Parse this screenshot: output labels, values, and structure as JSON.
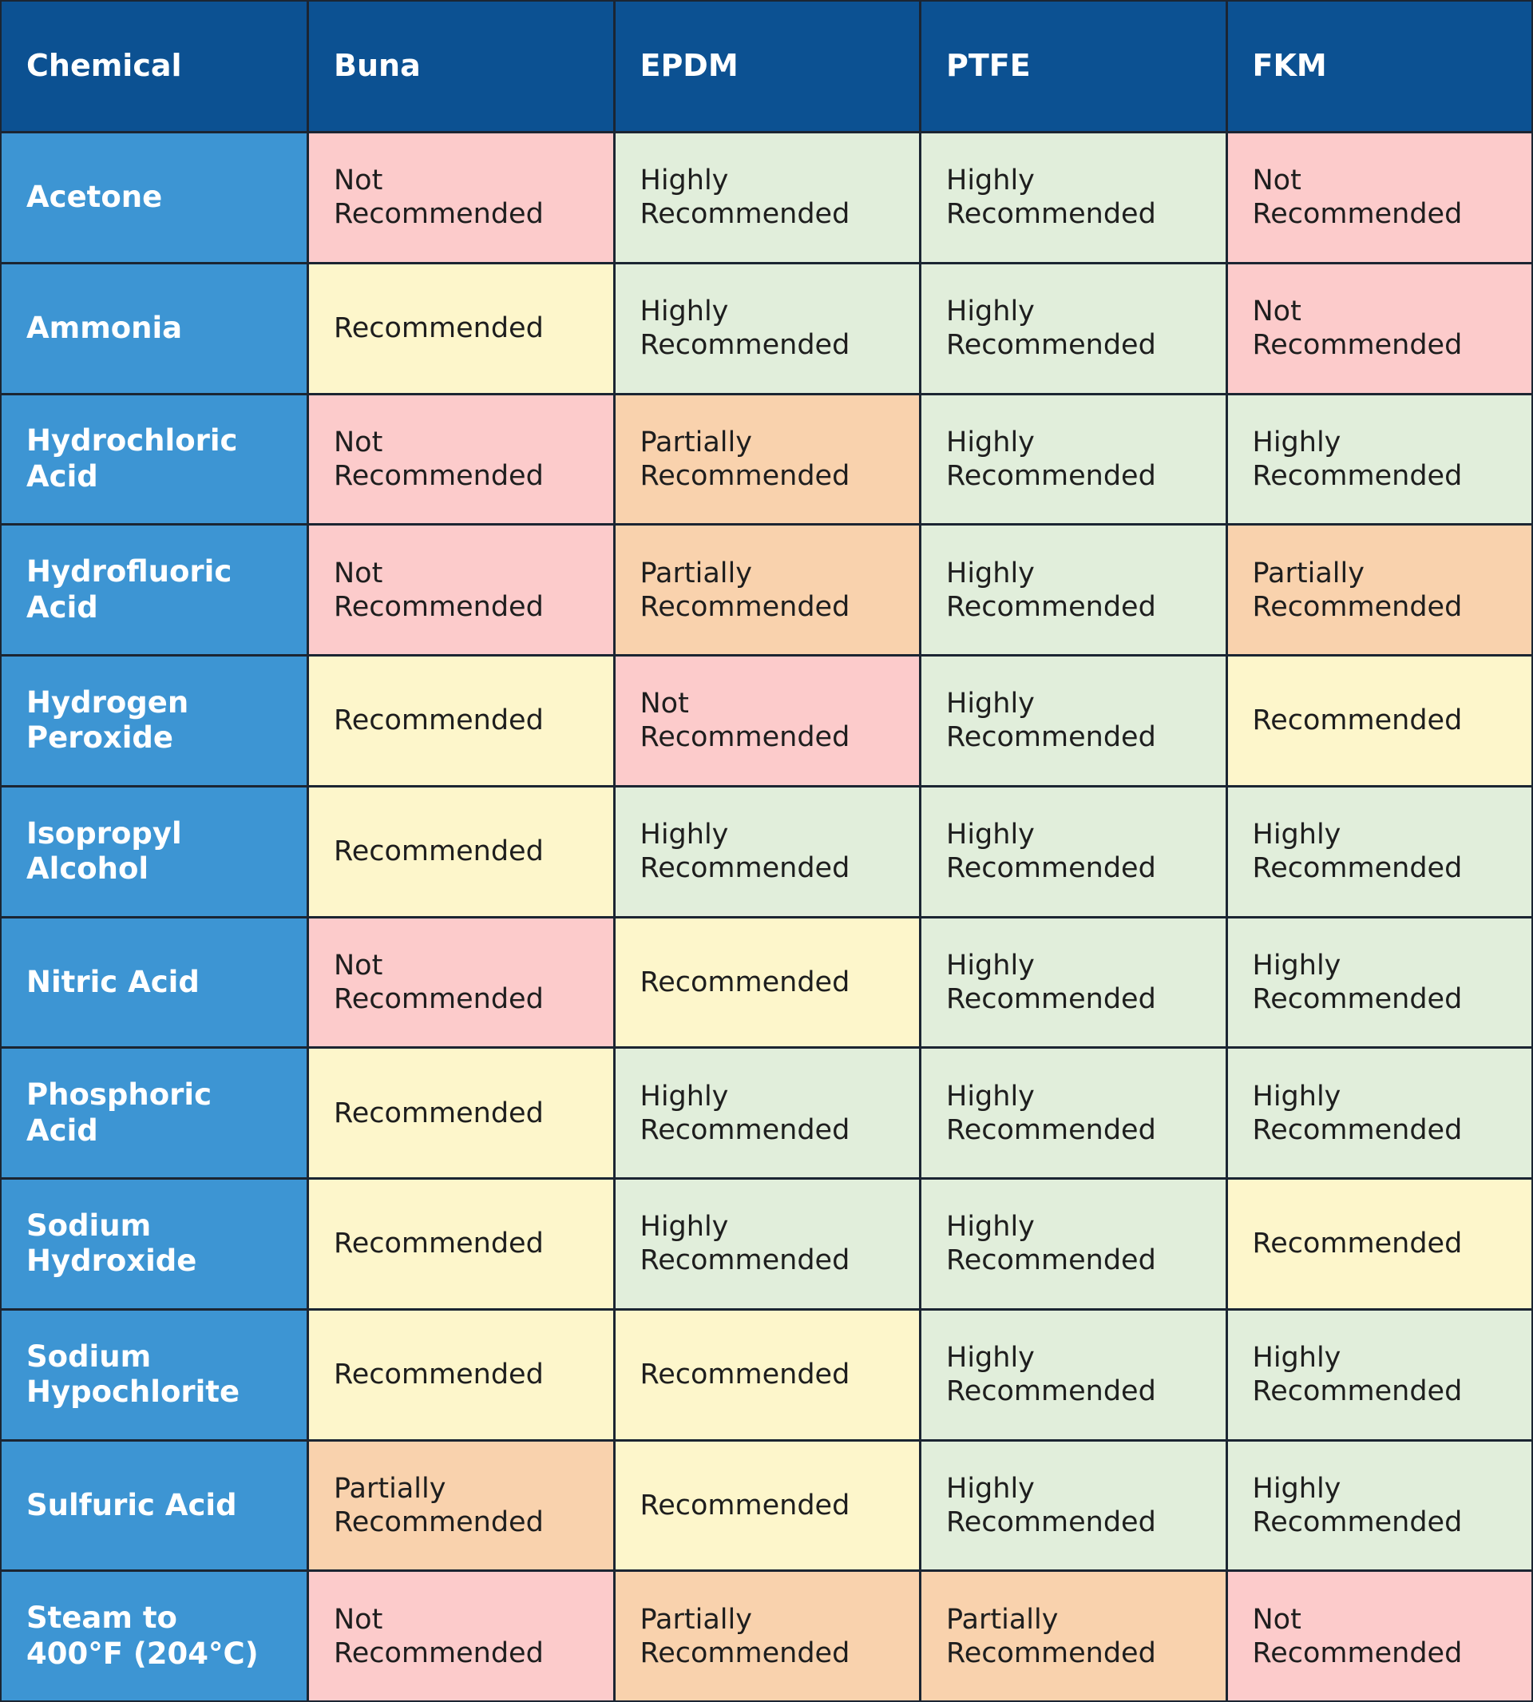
{
  "table": {
    "headers": [
      "Chemical",
      "Buna",
      "EPDM",
      "PTFE",
      "FKM"
    ],
    "rows": [
      [
        "Acetone",
        "Not Recommended",
        "Highly Recommended",
        "Highly Recommended",
        "Not Recommended"
      ],
      [
        "Ammonia",
        "Recommended",
        "Highly Recommended",
        "Highly Recommended",
        "Not Recommended"
      ],
      [
        "Hydrochloric Acid",
        "Not Recommended",
        "Partially Recommended",
        "Highly Recommended",
        "Highly Recommended"
      ],
      [
        "Hydrofluoric Acid",
        "Not Recommended",
        "Partially Recommended",
        "Highly Recommended",
        "Partially Recommended"
      ],
      [
        "Hydrogen Peroxide",
        "Recommended",
        "Not Recommended",
        "Highly Recommended",
        "Recommended"
      ],
      [
        "Isopropyl Alcohol",
        "Recommended",
        "Highly Recommended",
        "Highly Recommended",
        "Highly Recommended"
      ],
      [
        "Nitric Acid",
        "Not Recommended",
        "Recommended",
        "Highly Recommended",
        "Highly Recommended"
      ],
      [
        "Phosphoric Acid",
        "Recommended",
        "Highly Recommended",
        "Highly Recommended",
        "Highly Recommended"
      ],
      [
        "Sodium Hydroxide",
        "Recommended",
        "Highly Recommended",
        "Highly Recommended",
        "Recommended"
      ],
      [
        "Sodium Hypochlorite",
        "Recommended",
        "Recommended",
        "Highly Recommended",
        "Highly Recommended"
      ],
      [
        "Sulfuric Acid",
        "Partially Recommended",
        "Recommended",
        "Highly Recommended",
        "Highly Recommended"
      ],
      [
        "Steam to 400°F (204°C)",
        "Not Recommended",
        "Partially Recommended",
        "Partially Recommended",
        "Not Recommended"
      ]
    ],
    "rating_colors": {
      "Not Recommended": "#fccbcb",
      "Highly Recommended": "#e1eedb",
      "Recommended": "#fdf6cb",
      "Partially Recommended": "#f9d2ad"
    },
    "header_color": "#0c5192",
    "first_column_color": "#3d95d3"
  }
}
